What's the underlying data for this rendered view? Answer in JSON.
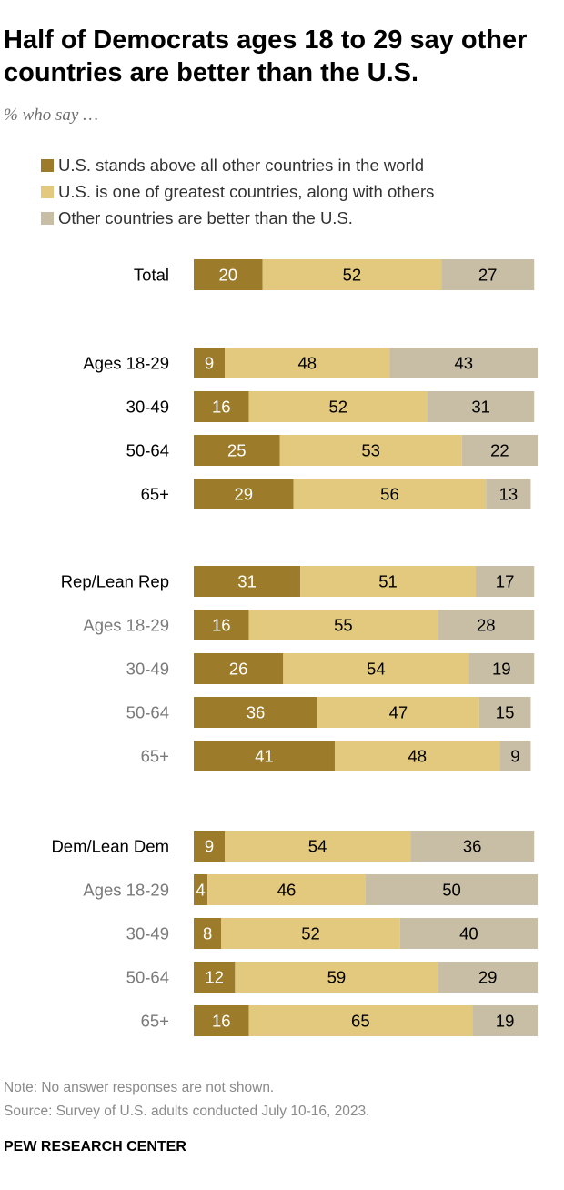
{
  "title": "Half of Democrats ages 18 to 29 say other countries are better than the U.S.",
  "subtitle": "% who say …",
  "colors": {
    "above": "#9c7b2a",
    "greatest": "#e3c97e",
    "better": "#c7bea5",
    "label_primary": "#000000",
    "label_secondary": "#7a7a7a"
  },
  "chart_data": {
    "type": "bar",
    "orientation": "horizontal",
    "stacked": true,
    "series": [
      {
        "name": "U.S. stands above all other countries in the world",
        "color": "#9c7b2a"
      },
      {
        "name": "U.S. is one of greatest countries, along with others",
        "color": "#e3c97e"
      },
      {
        "name": "Other countries are better than the U.S.",
        "color": "#c7bea5"
      }
    ],
    "rows": [
      {
        "label": "Total",
        "values": [
          20,
          52,
          27
        ],
        "style": "primary"
      },
      {
        "label": "Ages 18-29",
        "values": [
          9,
          48,
          43
        ],
        "style": "primary"
      },
      {
        "label": "30-49",
        "values": [
          16,
          52,
          31
        ],
        "style": "primary"
      },
      {
        "label": "50-64",
        "values": [
          25,
          53,
          22
        ],
        "style": "primary"
      },
      {
        "label": "65+",
        "values": [
          29,
          56,
          13
        ],
        "style": "primary"
      },
      {
        "label": "Rep/Lean Rep",
        "values": [
          31,
          51,
          17
        ],
        "style": "primary"
      },
      {
        "label": "Ages 18-29",
        "values": [
          16,
          55,
          28
        ],
        "style": "secondary"
      },
      {
        "label": "30-49",
        "values": [
          26,
          54,
          19
        ],
        "style": "secondary"
      },
      {
        "label": "50-64",
        "values": [
          36,
          47,
          15
        ],
        "style": "secondary"
      },
      {
        "label": "65+",
        "values": [
          41,
          48,
          9
        ],
        "style": "secondary"
      },
      {
        "label": "Dem/Lean Dem",
        "values": [
          9,
          54,
          36
        ],
        "style": "primary"
      },
      {
        "label": "Ages 18-29",
        "values": [
          4,
          46,
          50
        ],
        "style": "secondary"
      },
      {
        "label": "30-49",
        "values": [
          8,
          52,
          40
        ],
        "style": "secondary"
      },
      {
        "label": "50-64",
        "values": [
          12,
          59,
          29
        ],
        "style": "secondary"
      },
      {
        "label": "65+",
        "values": [
          16,
          65,
          19
        ],
        "style": "secondary"
      }
    ],
    "xlim": [
      0,
      100
    ]
  },
  "note": "Note: No answer responses are not shown.",
  "source": "Source: Survey of U.S. adults conducted July 10-16, 2023.",
  "org": "PEW RESEARCH CENTER"
}
